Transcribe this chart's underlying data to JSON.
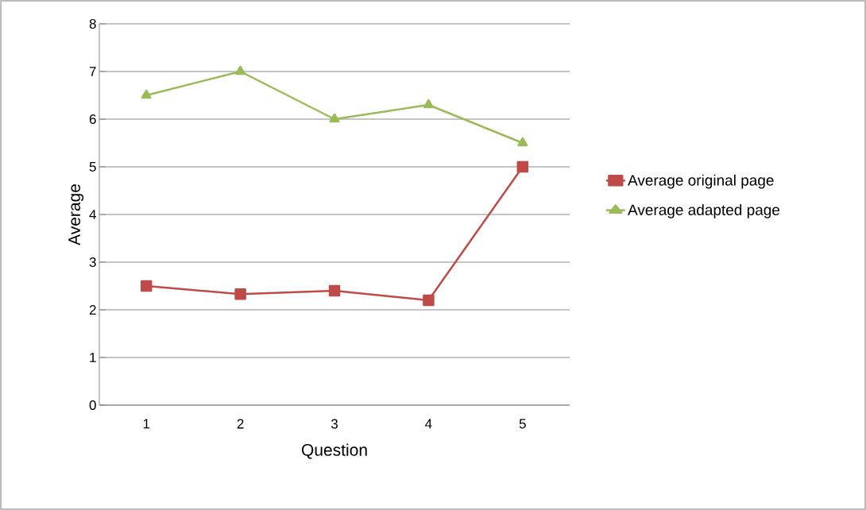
{
  "chart_data": {
    "type": "line",
    "xlabel": "Question",
    "ylabel": "Average",
    "categories": [
      "1",
      "2",
      "3",
      "4",
      "5"
    ],
    "series": [
      {
        "name": "Average original page",
        "color": "#be4b48",
        "marker": "square",
        "values": [
          2.5,
          2.33,
          2.4,
          2.2,
          5.0
        ]
      },
      {
        "name": "Average adapted page",
        "color": "#9bbb59",
        "marker": "triangle",
        "values": [
          6.5,
          7.0,
          6.0,
          6.3,
          5.5
        ]
      }
    ],
    "ylim": [
      0,
      8
    ],
    "yticks": [
      0,
      1,
      2,
      3,
      4,
      5,
      6,
      7,
      8
    ],
    "grid": "y",
    "legend": "right",
    "line_style": "solid"
  }
}
